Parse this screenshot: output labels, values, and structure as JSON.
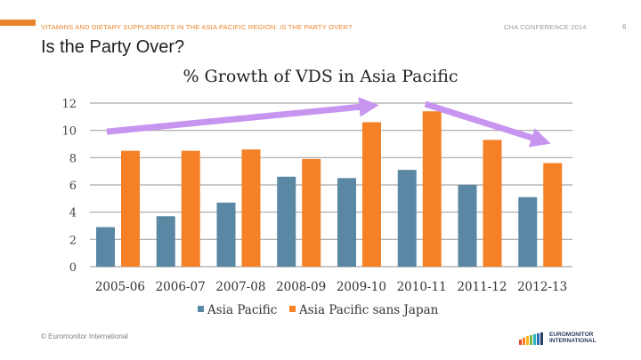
{
  "header": {
    "left_text": "VITAMINS AND DIETARY SUPPLEMENTS IN THE ASIA PACIFIC REGION: IS THE PARTY OVER?",
    "right_text": "CHA CONFERENCE 2014",
    "page_number": "6",
    "accent_color": "#e8832a"
  },
  "slide": {
    "title": "Is the Party Over?"
  },
  "footer": {
    "copyright": "© Euromonitor International",
    "logo_text_line1": "EUROMONITOR",
    "logo_text_line2": "INTERNATIONAL"
  },
  "chart_data": {
    "type": "bar",
    "title": "% Growth of VDS in Asia Pacific",
    "categories": [
      "2005-06",
      "2006-07",
      "2007-08",
      "2008-09",
      "2009-10",
      "2010-11",
      "2011-12",
      "2012-13"
    ],
    "series": [
      {
        "name": "Asia Pacific",
        "color": "#5a87a3",
        "values": [
          2.9,
          3.7,
          4.7,
          6.6,
          6.5,
          7.1,
          6.0,
          5.1
        ]
      },
      {
        "name": "Asia Pacific sans Japan",
        "color": "#f58025",
        "values": [
          8.5,
          8.5,
          8.6,
          7.9,
          10.6,
          11.4,
          9.3,
          7.6
        ]
      }
    ],
    "ylim": [
      0,
      12
    ],
    "yticks": [
      "0",
      "2",
      "4",
      "6",
      "8",
      "10",
      "12"
    ],
    "grid": true,
    "legend_position": "bottom",
    "trend_arrow_color": "#c795f0"
  }
}
